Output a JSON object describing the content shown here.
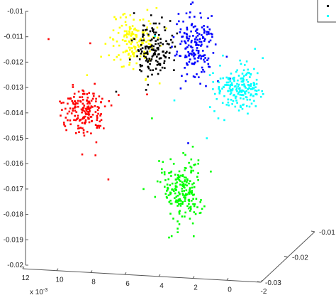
{
  "chart_data": {
    "type": "scatter",
    "title": "",
    "xlabel": "",
    "ylabel": "",
    "zlabel": "",
    "dims": 3,
    "grid": false,
    "legend_position": "top-right",
    "axes": {
      "x": {
        "range": [
          -2,
          12
        ],
        "ticks": [
          "12",
          "10",
          "8",
          "6",
          "4",
          "2",
          "0",
          "-2"
        ],
        "multiplier_label": "x 10^-3"
      },
      "y": {
        "range": [
          -0.03,
          -0.01
        ],
        "ticks": [
          "-0.03",
          "-0.02",
          "-0.01"
        ]
      },
      "z": {
        "range": [
          -0.02,
          -0.01
        ],
        "ticks": [
          "-0.01",
          "-0.011",
          "-0.012",
          "-0.013",
          "-0.014",
          "-0.015",
          "-0.016",
          "-0.017",
          "-0.018",
          "-0.019",
          "-0.02"
        ]
      }
    },
    "series": [
      {
        "color": "#ff0000",
        "marker": "dot",
        "approx_count": 180,
        "centroid_px": null,
        "approx_center": {
          "x": 8.8,
          "z": -0.0139
        }
      },
      {
        "color": "#ffff00",
        "marker": "dot",
        "approx_count": 160,
        "approx_center": {
          "x": 5.3,
          "z": -0.0112
        }
      },
      {
        "color": "#000000",
        "marker": "dot",
        "approx_count": 150,
        "approx_center": {
          "x": 4.6,
          "z": -0.0114
        }
      },
      {
        "color": "#0000ff",
        "marker": "dot",
        "approx_count": 180,
        "approx_center": {
          "x": 2.3,
          "z": -0.0113
        }
      },
      {
        "color": "#00ffff",
        "marker": "dot",
        "approx_count": 200,
        "approx_center": {
          "x": -0.1,
          "z": -0.0129
        }
      },
      {
        "color": "#00ff00",
        "marker": "dot",
        "approx_count": 200,
        "approx_center": {
          "x": 3.4,
          "z": -0.017
        }
      }
    ],
    "legend_entries": [
      {
        "color": "#000000"
      },
      {
        "color": "#00ffff"
      }
    ]
  }
}
